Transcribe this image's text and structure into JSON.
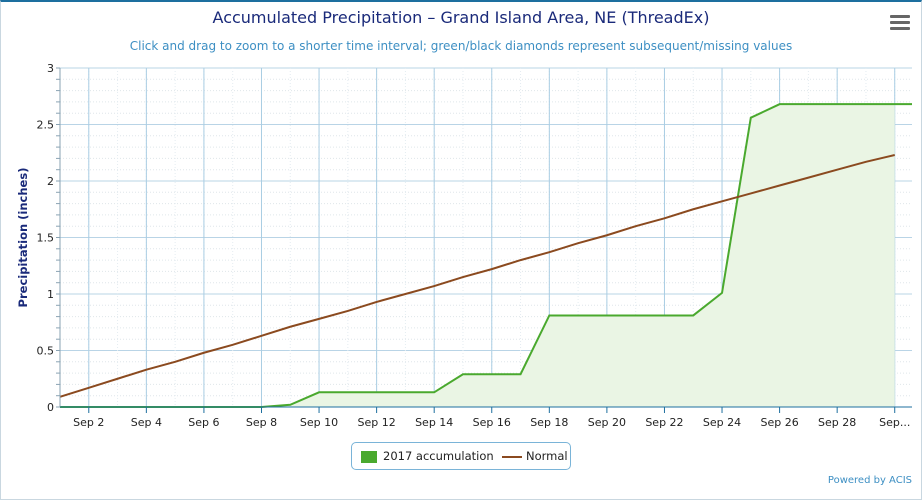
{
  "header": {
    "title": "Accumulated Precipitation – Grand Island Area, NE (ThreadEx)",
    "subtitle": "Click and drag to zoom to a shorter time interval; green/black diamonds represent subsequent/missing values",
    "menu_icon": "hamburger-menu-icon"
  },
  "legend": {
    "items": [
      {
        "label": "2017 accumulation",
        "color": "#4aa92e"
      },
      {
        "label": "Normal",
        "color": "#8b4a1f"
      }
    ]
  },
  "footer": {
    "credit": "Powered by ACIS"
  },
  "chart_data": {
    "type": "line",
    "title": "Accumulated Precipitation – Grand Island Area, NE (ThreadEx)",
    "ylabel": "Precipitation (inches)",
    "xlabel": "",
    "ylim": [
      0,
      3
    ],
    "yticks": [
      "0",
      "0.5",
      "1",
      "1.5",
      "2",
      "2.5",
      "3"
    ],
    "xlim": [
      1,
      30
    ],
    "xticks": [
      {
        "day": 2,
        "label": "Sep 2"
      },
      {
        "day": 4,
        "label": "Sep 4"
      },
      {
        "day": 6,
        "label": "Sep 6"
      },
      {
        "day": 8,
        "label": "Sep 8"
      },
      {
        "day": 10,
        "label": "Sep 10"
      },
      {
        "day": 12,
        "label": "Sep 12"
      },
      {
        "day": 14,
        "label": "Sep 14"
      },
      {
        "day": 16,
        "label": "Sep 16"
      },
      {
        "day": 18,
        "label": "Sep 18"
      },
      {
        "day": 20,
        "label": "Sep 20"
      },
      {
        "day": 22,
        "label": "Sep 22"
      },
      {
        "day": 24,
        "label": "Sep 24"
      },
      {
        "day": 26,
        "label": "Sep 26"
      },
      {
        "day": 28,
        "label": "Sep 28"
      },
      {
        "day": 30,
        "label": "Sep..."
      }
    ],
    "grid": true,
    "legend_position": "bottom-center",
    "series": [
      {
        "name": "2017 accumulation",
        "type": "area",
        "color": "#4aa92e",
        "fill": "#eaf5e4",
        "x": [
          1,
          2,
          3,
          4,
          5,
          6,
          7,
          8,
          9,
          10,
          11,
          12,
          13,
          14,
          15,
          16,
          17,
          18,
          19,
          20,
          21,
          22,
          23,
          24,
          25,
          26,
          27,
          28,
          29,
          30
        ],
        "y": [
          0,
          0,
          0,
          0,
          0,
          0,
          0,
          0,
          0.02,
          0.13,
          0.13,
          0.13,
          0.13,
          0.13,
          0.29,
          0.29,
          0.29,
          0.81,
          0.81,
          0.81,
          0.81,
          0.81,
          0.81,
          1.01,
          2.56,
          2.68,
          2.68,
          2.68,
          2.68,
          2.68
        ]
      },
      {
        "name": "Normal",
        "type": "line",
        "color": "#8b4a1f",
        "x": [
          1,
          2,
          3,
          4,
          5,
          6,
          7,
          8,
          9,
          10,
          11,
          12,
          13,
          14,
          15,
          16,
          17,
          18,
          19,
          20,
          21,
          22,
          23,
          24,
          25,
          26,
          27,
          28,
          29,
          30
        ],
        "y": [
          0.09,
          0.17,
          0.25,
          0.33,
          0.4,
          0.48,
          0.55,
          0.63,
          0.71,
          0.78,
          0.85,
          0.93,
          1.0,
          1.07,
          1.15,
          1.22,
          1.3,
          1.37,
          1.45,
          1.52,
          1.6,
          1.67,
          1.75,
          1.82,
          1.89,
          1.96,
          2.03,
          2.1,
          2.17,
          2.23
        ]
      }
    ]
  }
}
